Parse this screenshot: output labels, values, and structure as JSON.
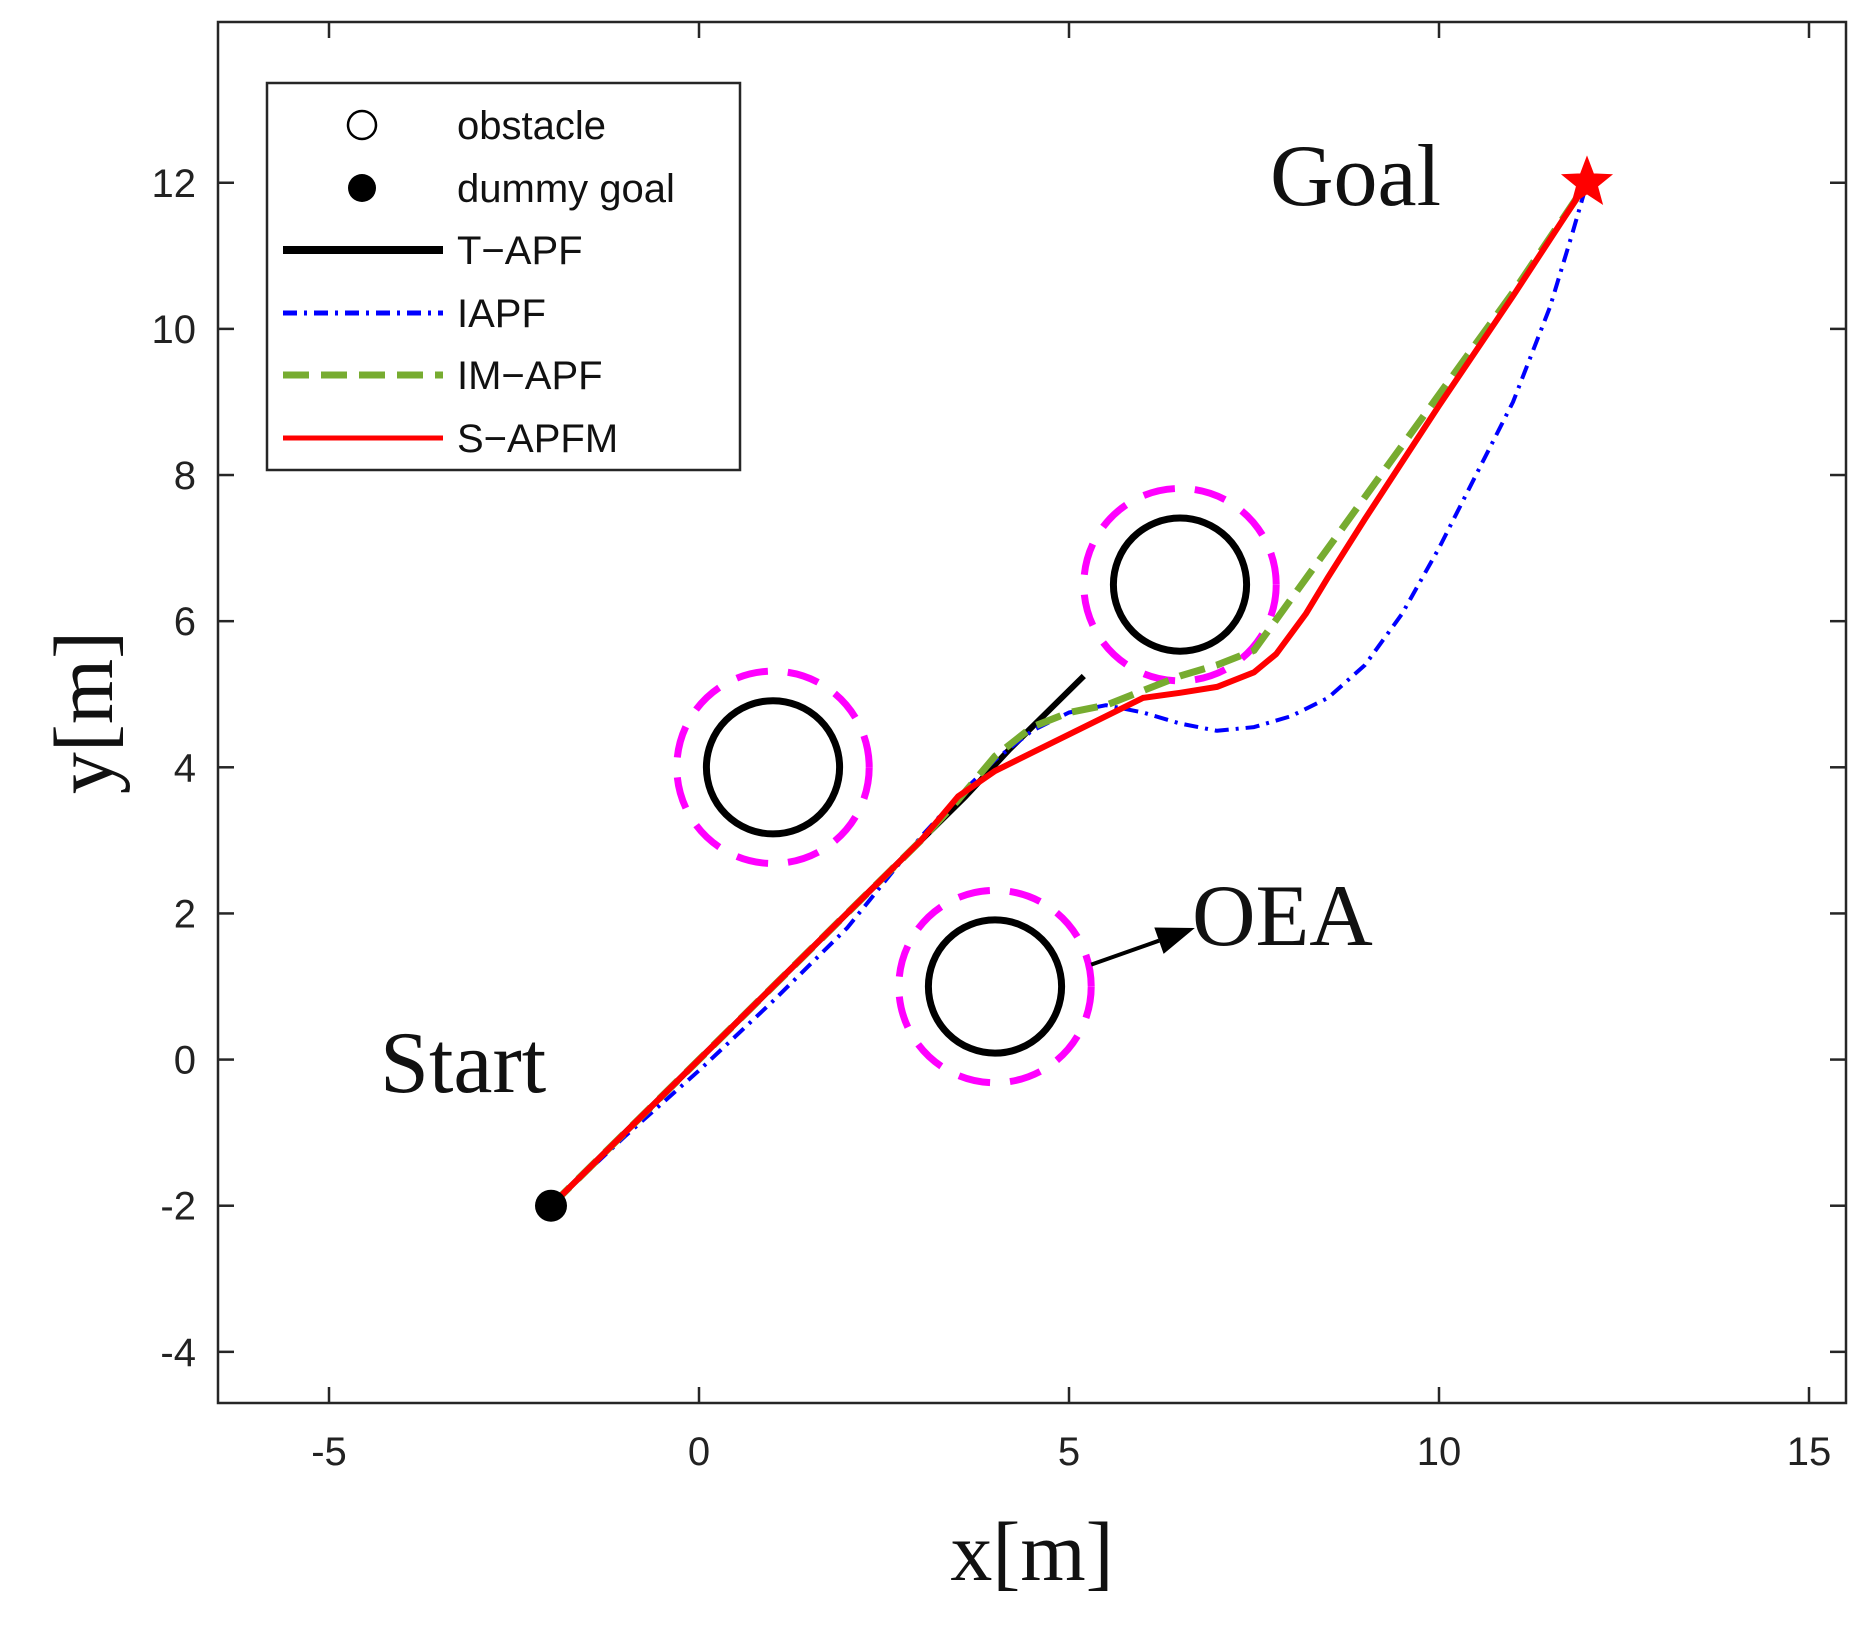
{
  "chart_data": {
    "type": "line",
    "title": "",
    "xlabel": "x[m]",
    "ylabel": "y[m]",
    "xlim": [
      -6.5,
      15.5
    ],
    "ylim": [
      -4.7,
      14.2
    ],
    "xticks": [
      -5,
      0,
      5,
      10,
      15
    ],
    "yticks": [
      -4,
      -2,
      0,
      2,
      4,
      6,
      8,
      10,
      12
    ],
    "xtick_labels": [
      "-5",
      "0",
      "5",
      "10",
      "15"
    ],
    "ytick_labels": [
      "-4",
      "-2",
      "0",
      "2",
      "4",
      "6",
      "8",
      "10",
      "12"
    ],
    "grid": false,
    "legend_position": "top-left",
    "legend": [
      {
        "label": "obstacle",
        "kind": "open-circle",
        "color": "#000000"
      },
      {
        "label": "dummy goal",
        "kind": "filled-circle",
        "color": "#000000"
      },
      {
        "label": "T−APF",
        "kind": "line",
        "color": "#000000",
        "dash": "solid"
      },
      {
        "label": "IAPF",
        "kind": "line",
        "color": "#0000ff",
        "dash": "dashdot"
      },
      {
        "label": "IM−APF",
        "kind": "line",
        "color": "#77ac30",
        "dash": "dash"
      },
      {
        "label": "S−APFM",
        "kind": "line",
        "color": "#ff0000",
        "dash": "solid"
      }
    ],
    "start": {
      "x": -2,
      "y": -2,
      "label": "Start"
    },
    "goal": {
      "x": 12,
      "y": 12,
      "label": "Goal",
      "color": "#ff0000"
    },
    "obstacles": [
      {
        "x": 1,
        "y": 4,
        "radius": 0.9,
        "oea_radius": 1.3
      },
      {
        "x": 4,
        "y": 1,
        "radius": 0.9,
        "oea_radius": 1.3
      },
      {
        "x": 6.5,
        "y": 6.5,
        "radius": 0.9,
        "oea_radius": 1.3
      }
    ],
    "annotations": [
      {
        "text": "OEA",
        "x": 6.8,
        "y": 1.6,
        "arrow_from": [
          5.3,
          1.3
        ],
        "arrow_to": [
          6.7,
          1.8
        ]
      }
    ],
    "series": [
      {
        "name": "T−APF",
        "color": "#000000",
        "dash": "solid",
        "points": [
          [
            -2,
            -2
          ],
          [
            -1,
            -1
          ],
          [
            0,
            0
          ],
          [
            1,
            1
          ],
          [
            2,
            2
          ],
          [
            3,
            3
          ],
          [
            3.6,
            3.6
          ],
          [
            4.2,
            4.25
          ],
          [
            4.7,
            4.75
          ],
          [
            5.2,
            5.25
          ]
        ]
      },
      {
        "name": "IAPF",
        "color": "#0000ff",
        "dash": "dashdot",
        "points": [
          [
            -2,
            -2
          ],
          [
            -1,
            -1.05
          ],
          [
            0,
            -0.15
          ],
          [
            1,
            0.8
          ],
          [
            2,
            1.8
          ],
          [
            3,
            3.05
          ],
          [
            3.5,
            3.6
          ],
          [
            4,
            4.1
          ],
          [
            4.5,
            4.5
          ],
          [
            5,
            4.75
          ],
          [
            5.5,
            4.85
          ],
          [
            6,
            4.75
          ],
          [
            6.5,
            4.6
          ],
          [
            7,
            4.5
          ],
          [
            7.5,
            4.55
          ],
          [
            8,
            4.7
          ],
          [
            8.5,
            4.95
          ],
          [
            9,
            5.4
          ],
          [
            9.5,
            6.1
          ],
          [
            10,
            7
          ],
          [
            10.5,
            8
          ],
          [
            11,
            9
          ],
          [
            11.5,
            10.3
          ],
          [
            11.8,
            11.3
          ],
          [
            12,
            12
          ]
        ]
      },
      {
        "name": "IM−APF",
        "color": "#77ac30",
        "dash": "dash",
        "points": [
          [
            -2,
            -2
          ],
          [
            -1,
            -1
          ],
          [
            0,
            0
          ],
          [
            1,
            1
          ],
          [
            2,
            2
          ],
          [
            3,
            3
          ],
          [
            3.5,
            3.55
          ],
          [
            4,
            4.15
          ],
          [
            4.5,
            4.55
          ],
          [
            5,
            4.75
          ],
          [
            5.5,
            4.85
          ],
          [
            6,
            5.05
          ],
          [
            6.5,
            5.25
          ],
          [
            7,
            5.4
          ],
          [
            7.5,
            5.6
          ],
          [
            8,
            6.3
          ],
          [
            9,
            7.7
          ],
          [
            10,
            9.1
          ],
          [
            11,
            10.5
          ],
          [
            12,
            12
          ]
        ]
      },
      {
        "name": "S−APFM",
        "color": "#ff0000",
        "dash": "solid",
        "points": [
          [
            -2,
            -2
          ],
          [
            -1,
            -1
          ],
          [
            0,
            0
          ],
          [
            1,
            1
          ],
          [
            2,
            2
          ],
          [
            3,
            3
          ],
          [
            3.5,
            3.6
          ],
          [
            4,
            3.95
          ],
          [
            4.5,
            4.2
          ],
          [
            5,
            4.45
          ],
          [
            5.5,
            4.7
          ],
          [
            6,
            4.95
          ],
          [
            6.5,
            5.02
          ],
          [
            7,
            5.1
          ],
          [
            7.5,
            5.3
          ],
          [
            7.8,
            5.55
          ],
          [
            8.2,
            6.1
          ],
          [
            8.5,
            6.6
          ],
          [
            9,
            7.4
          ],
          [
            10,
            8.95
          ],
          [
            11,
            10.45
          ],
          [
            12,
            12
          ]
        ]
      }
    ]
  }
}
